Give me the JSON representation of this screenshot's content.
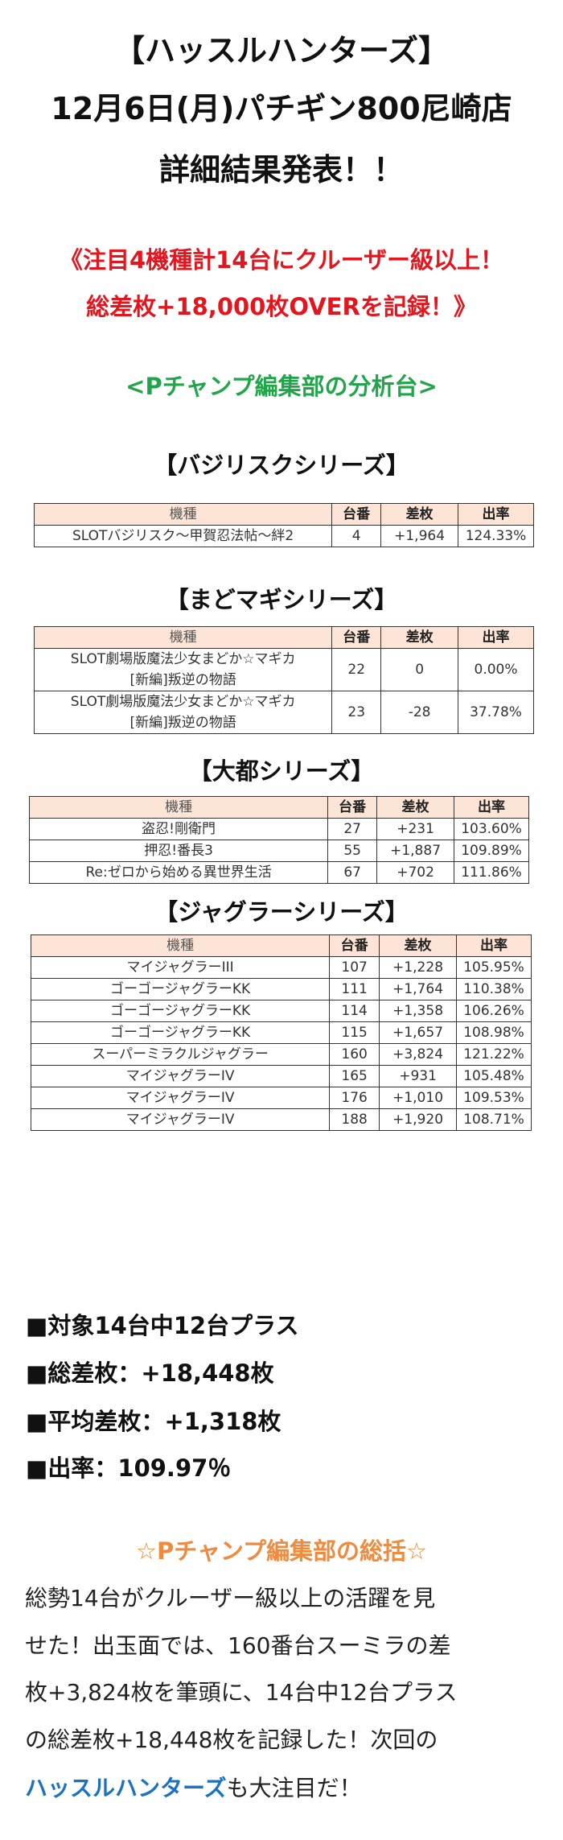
{
  "header": {
    "title_lines": [
      "【ハッスルハンターズ】",
      "12月6日(月)パチギン800尼崎店",
      "詳細結果発表！！"
    ],
    "headline_lines": [
      "《注目4機種計14台にクルーザー級以上！",
      "総差枚+18,000枚OVERを記録！》"
    ],
    "subheading": "<Pチャンプ編集部の分析台>"
  },
  "colors": {
    "headline": "#e5151e",
    "subheading": "#21a54a",
    "summary_heading": "#ef8a3e",
    "highlight": "#1a72c0",
    "table_header_bg": "#fce4d6"
  },
  "columns": [
    "機種",
    "台番",
    "差枚",
    "出率"
  ],
  "sections": [
    {
      "title": "【バジリスクシリーズ】",
      "rows": [
        {
          "machine": "SLOTバジリスク～甲賀忍法帖～絆2",
          "number": "4",
          "diff": "+1,964",
          "rate": "124.33%"
        }
      ]
    },
    {
      "title": "【まどマギシリーズ】",
      "rows": [
        {
          "machine": "SLOT劇場版魔法少女まどか☆マギカ",
          "machine2": "[新編]叛逆の物語",
          "number": "22",
          "diff": "0",
          "rate": "0.00%"
        },
        {
          "machine": "SLOT劇場版魔法少女まどか☆マギカ",
          "machine2": "[新編]叛逆の物語",
          "number": "23",
          "diff": "-28",
          "rate": "37.78%"
        }
      ]
    },
    {
      "title": "【大都シリーズ】",
      "rows": [
        {
          "machine": "盗忍!剛衛門",
          "number": "27",
          "diff": "+231",
          "rate": "103.60%"
        },
        {
          "machine": "押忍!番長3",
          "number": "55",
          "diff": "+1,887",
          "rate": "109.89%"
        },
        {
          "machine": "Re:ゼロから始める異世界生活",
          "number": "67",
          "diff": "+702",
          "rate": "111.86%"
        }
      ]
    },
    {
      "title": "【ジャグラーシリーズ】",
      "rows": [
        {
          "machine": "マイジャグラーIII",
          "number": "107",
          "diff": "+1,228",
          "rate": "105.95%"
        },
        {
          "machine": "ゴーゴージャグラーKK",
          "number": "111",
          "diff": "+1,764",
          "rate": "110.38%"
        },
        {
          "machine": "ゴーゴージャグラーKK",
          "number": "114",
          "diff": "+1,358",
          "rate": "106.26%"
        },
        {
          "machine": "ゴーゴージャグラーKK",
          "number": "115",
          "diff": "+1,657",
          "rate": "108.98%"
        },
        {
          "machine": "スーパーミラクルジャグラー",
          "number": "160",
          "diff": "+3,824",
          "rate": "121.22%"
        },
        {
          "machine": "マイジャグラーIV",
          "number": "165",
          "diff": "+931",
          "rate": "105.48%"
        },
        {
          "machine": "マイジャグラーIV",
          "number": "176",
          "diff": "+1,010",
          "rate": "109.53%"
        },
        {
          "machine": "マイジャグラーIV",
          "number": "188",
          "diff": "+1,920",
          "rate": "108.71%"
        }
      ]
    }
  ],
  "summary": [
    "■対象14台中12台プラス",
    "■総差枚：+18,448枚",
    "■平均差枚：+1,318枚",
    "■出率：109.97％"
  ],
  "review": {
    "heading": "☆Pチャンプ編集部の総括☆",
    "lines": [
      "総勢14台がクルーザー級以上の活躍を見",
      "せた！出玉面では、160番台スーミラの差",
      "枚+3,824枚を筆頭に、14台中12台プラス",
      "の総差枚+18,448枚を記録した！次回の"
    ],
    "last_highlight": "ハッスルハンターズ",
    "last_rest": "も大注目だ！"
  }
}
